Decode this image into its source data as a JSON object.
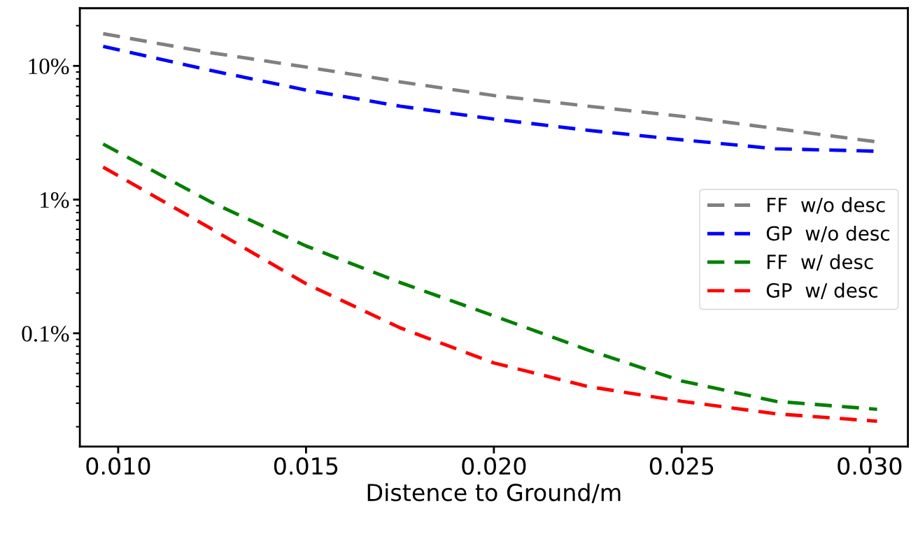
{
  "chart_data": {
    "type": "line",
    "xlabel": "Distence to Ground/m",
    "log": "y",
    "xlim": [
      0.00898,
      0.03102
    ],
    "xticks": [
      {
        "value": 0.01,
        "label": "0.010"
      },
      {
        "value": 0.015,
        "label": "0.015"
      },
      {
        "value": 0.02,
        "label": "0.020"
      },
      {
        "value": 0.025,
        "label": "0.025"
      },
      {
        "value": 0.03,
        "label": "0.030"
      }
    ],
    "ylim": [
      0.0142,
      27
    ],
    "yticks": [
      {
        "value": 0.1,
        "label": "0.1%"
      },
      {
        "value": 1,
        "label": "1%"
      },
      {
        "value": 10,
        "label": "10%"
      }
    ],
    "x": [
      0.0096,
      0.0125,
      0.015,
      0.0175,
      0.02,
      0.0225,
      0.025,
      0.0275,
      0.0302
    ],
    "grid": false,
    "legend": "right",
    "line_style": "dashed",
    "marker": "none",
    "series": [
      {
        "name": "FF  w/o desc",
        "color": "#808080",
        "values": [
          17.4,
          12.5,
          9.8,
          7.6,
          6.0,
          5.0,
          4.2,
          3.4,
          2.7
        ]
      },
      {
        "name": "GP  w/o desc",
        "color": "#0000ff",
        "values": [
          14,
          9.2,
          6.6,
          5.0,
          4.0,
          3.3,
          2.8,
          2.4,
          2.3
        ]
      },
      {
        "name": "FF  w/ desc",
        "color": "#008000",
        "values": [
          2.6,
          0.95,
          0.45,
          0.24,
          0.135,
          0.075,
          0.044,
          0.031,
          0.027
        ]
      },
      {
        "name": "GP  w/ desc",
        "color": "#ff0000",
        "values": [
          1.75,
          0.6,
          0.235,
          0.11,
          0.06,
          0.04,
          0.031,
          0.025,
          0.022
        ]
      }
    ]
  }
}
